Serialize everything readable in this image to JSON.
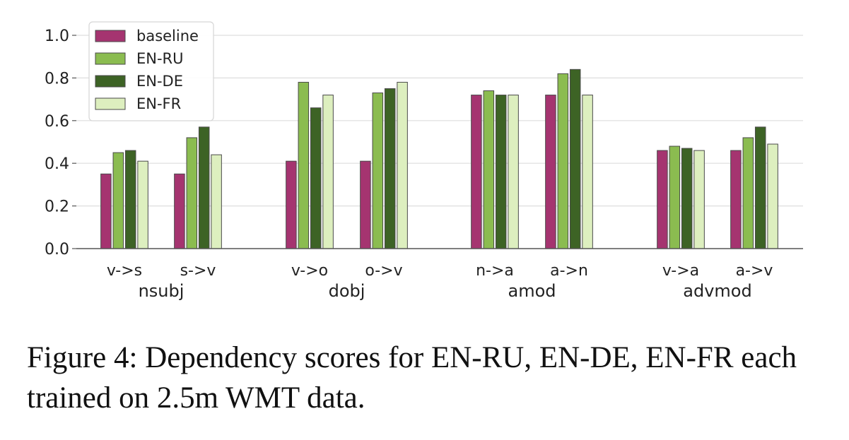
{
  "chart_data": {
    "type": "bar",
    "categories": [
      "v->s",
      "s->v",
      "v->o",
      "o->v",
      "n->a",
      "a->n",
      "v->a",
      "a->v"
    ],
    "groups": [
      {
        "label": "nsubj",
        "categories": [
          "v->s",
          "s->v"
        ]
      },
      {
        "label": "dobj",
        "categories": [
          "v->o",
          "o->v"
        ]
      },
      {
        "label": "amod",
        "categories": [
          "n->a",
          "a->n"
        ]
      },
      {
        "label": "advmod",
        "categories": [
          "v->a",
          "a->v"
        ]
      }
    ],
    "series": [
      {
        "name": "baseline",
        "color": "#a53470",
        "values": [
          0.35,
          0.35,
          0.41,
          0.41,
          0.72,
          0.72,
          0.46,
          0.46
        ]
      },
      {
        "name": "EN-RU",
        "color": "#8bbc50",
        "values": [
          0.45,
          0.52,
          0.78,
          0.73,
          0.74,
          0.82,
          0.48,
          0.52
        ]
      },
      {
        "name": "EN-DE",
        "color": "#3d6325",
        "values": [
          0.46,
          0.57,
          0.66,
          0.75,
          0.72,
          0.84,
          0.47,
          0.57
        ]
      },
      {
        "name": "EN-FR",
        "color": "#ddefbf",
        "values": [
          0.41,
          0.44,
          0.72,
          0.78,
          0.72,
          0.72,
          0.46,
          0.49
        ]
      }
    ],
    "yticks": [
      "0.0",
      "0.2",
      "0.4",
      "0.6",
      "0.8",
      "1.0"
    ],
    "ylim": [
      0,
      1.0
    ],
    "grid": true,
    "legend_position": "top-left"
  },
  "caption": {
    "text": "Figure 4: Dependency scores for EN-RU, EN-DE, EN-FR each trained on 2.5m WMT data."
  }
}
